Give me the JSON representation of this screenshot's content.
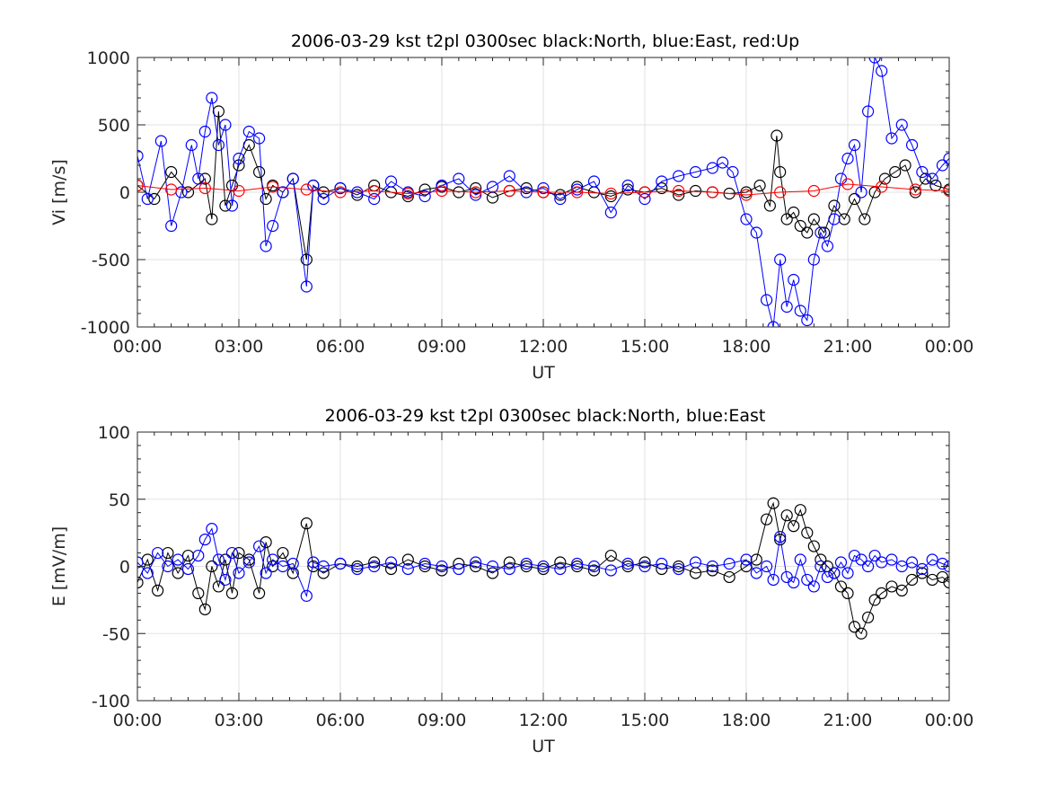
{
  "chart_data": [
    {
      "type": "line",
      "title": "2006-03-29 kst t2pl 0300sec black:North, blue:East, red:Up",
      "xlabel": "UT",
      "ylabel": "Vi [m/s]",
      "xlim": [
        0,
        24
      ],
      "ylim": [
        -1000,
        1000
      ],
      "grid": true,
      "x_tick_labels": [
        "00:00",
        "03:00",
        "06:00",
        "09:00",
        "12:00",
        "15:00",
        "18:00",
        "21:00",
        "00:00"
      ],
      "y_tick_labels": [
        "1000",
        "500",
        "0",
        "-500",
        "-1000"
      ],
      "marker": "open circle",
      "series": [
        {
          "name": "North",
          "color": "#000000",
          "x": [
            0.0,
            0.5,
            1.0,
            1.5,
            2.0,
            2.2,
            2.4,
            2.6,
            2.8,
            3.0,
            3.3,
            3.6,
            3.8,
            4.0,
            4.3,
            4.6,
            5.0,
            5.2,
            5.5,
            6.0,
            6.5,
            7.0,
            7.5,
            8.0,
            8.5,
            9.0,
            9.5,
            10.0,
            10.5,
            11.0,
            11.5,
            12.0,
            12.5,
            13.0,
            13.5,
            14.0,
            14.5,
            15.0,
            15.5,
            16.0,
            16.5,
            17.0,
            17.5,
            18.0,
            18.4,
            18.7,
            18.9,
            19.0,
            19.2,
            19.4,
            19.6,
            19.8,
            20.0,
            20.3,
            20.6,
            20.9,
            21.2,
            21.5,
            21.8,
            22.1,
            22.4,
            22.7,
            23.0,
            23.3,
            23.6,
            24.0
          ],
          "y": [
            50,
            -50,
            150,
            0,
            100,
            -200,
            600,
            -100,
            50,
            200,
            350,
            150,
            -50,
            50,
            0,
            100,
            -500,
            50,
            0,
            30,
            -20,
            50,
            0,
            -30,
            20,
            40,
            0,
            30,
            -40,
            10,
            30,
            0,
            -20,
            40,
            0,
            -30,
            20,
            0,
            30,
            -20,
            10,
            0,
            -10,
            0,
            50,
            -100,
            420,
            150,
            -200,
            -150,
            -250,
            -300,
            -200,
            -300,
            -100,
            -200,
            -50,
            -200,
            0,
            100,
            150,
            200,
            0,
            100,
            50,
            20
          ]
        },
        {
          "name": "East",
          "color": "#0000ff",
          "x": [
            0.0,
            0.3,
            0.7,
            1.0,
            1.3,
            1.6,
            1.8,
            2.0,
            2.2,
            2.4,
            2.6,
            2.8,
            3.0,
            3.3,
            3.6,
            3.8,
            4.0,
            4.3,
            4.6,
            5.0,
            5.2,
            5.5,
            6.0,
            6.5,
            7.0,
            7.5,
            8.0,
            8.5,
            9.0,
            9.5,
            10.0,
            10.5,
            11.0,
            11.5,
            12.0,
            12.5,
            13.0,
            13.5,
            14.0,
            14.5,
            15.0,
            15.5,
            16.0,
            16.5,
            17.0,
            17.3,
            17.6,
            18.0,
            18.3,
            18.6,
            18.8,
            19.0,
            19.2,
            19.4,
            19.6,
            19.8,
            20.0,
            20.2,
            20.4,
            20.6,
            20.8,
            21.0,
            21.2,
            21.4,
            21.6,
            21.8,
            22.0,
            22.3,
            22.6,
            22.9,
            23.2,
            23.5,
            23.8,
            24.0
          ],
          "y": [
            270,
            -50,
            380,
            -250,
            0,
            350,
            100,
            450,
            700,
            350,
            500,
            -100,
            250,
            450,
            400,
            -400,
            -250,
            0,
            100,
            -700,
            50,
            -50,
            30,
            0,
            -50,
            80,
            0,
            -30,
            50,
            100,
            -20,
            40,
            120,
            0,
            30,
            -50,
            20,
            80,
            -150,
            50,
            -50,
            80,
            120,
            150,
            180,
            220,
            150,
            -200,
            -300,
            -800,
            -1000,
            -500,
            -850,
            -650,
            -880,
            -950,
            -500,
            -300,
            -400,
            -200,
            100,
            250,
            350,
            0,
            600,
            1000,
            900,
            400,
            500,
            350,
            150,
            100,
            200,
            250
          ]
        },
        {
          "name": "Up",
          "color": "#ff0000",
          "x": [
            0.0,
            1.0,
            2.0,
            3.0,
            4.0,
            5.0,
            6.0,
            7.0,
            8.0,
            9.0,
            10.0,
            11.0,
            12.0,
            13.0,
            14.0,
            15.0,
            16.0,
            17.0,
            18.0,
            19.0,
            20.0,
            21.0,
            22.0,
            23.0,
            24.0
          ],
          "y": [
            50,
            20,
            30,
            10,
            40,
            20,
            0,
            10,
            -10,
            10,
            0,
            10,
            0,
            0,
            -10,
            0,
            10,
            0,
            -20,
            0,
            10,
            60,
            40,
            20,
            10
          ]
        }
      ]
    },
    {
      "type": "line",
      "title": "2006-03-29 kst t2pl 0300sec black:North, blue:East",
      "xlabel": "UT",
      "ylabel": "E [mV/m]",
      "xlim": [
        0,
        24
      ],
      "ylim": [
        -100,
        100
      ],
      "grid": true,
      "x_tick_labels": [
        "00:00",
        "03:00",
        "06:00",
        "09:00",
        "12:00",
        "15:00",
        "18:00",
        "21:00",
        "00:00"
      ],
      "y_tick_labels": [
        "100",
        "50",
        "0",
        "-50",
        "-100"
      ],
      "marker": "open circle",
      "series": [
        {
          "name": "North",
          "color": "#000000",
          "x": [
            0.0,
            0.3,
            0.6,
            0.9,
            1.2,
            1.5,
            1.8,
            2.0,
            2.2,
            2.4,
            2.6,
            2.8,
            3.0,
            3.3,
            3.6,
            3.8,
            4.0,
            4.3,
            4.6,
            5.0,
            5.2,
            5.5,
            6.0,
            6.5,
            7.0,
            7.5,
            8.0,
            8.5,
            9.0,
            9.5,
            10.0,
            10.5,
            11.0,
            11.5,
            12.0,
            12.5,
            13.0,
            13.5,
            14.0,
            14.5,
            15.0,
            15.5,
            16.0,
            16.5,
            17.0,
            17.5,
            18.0,
            18.3,
            18.6,
            18.8,
            19.0,
            19.2,
            19.4,
            19.6,
            19.8,
            20.0,
            20.2,
            20.4,
            20.6,
            20.8,
            21.0,
            21.2,
            21.4,
            21.6,
            21.8,
            22.0,
            22.3,
            22.6,
            22.9,
            23.2,
            23.5,
            23.8,
            24.0
          ],
          "y": [
            -12,
            5,
            -18,
            10,
            -5,
            8,
            -20,
            -32,
            0,
            -15,
            5,
            -20,
            10,
            5,
            -20,
            18,
            0,
            10,
            -5,
            32,
            0,
            -5,
            2,
            0,
            3,
            -2,
            5,
            0,
            -3,
            2,
            0,
            -5,
            3,
            0,
            -2,
            3,
            0,
            -3,
            8,
            0,
            3,
            -2,
            0,
            -5,
            -3,
            -8,
            0,
            5,
            35,
            47,
            20,
            38,
            30,
            42,
            25,
            15,
            5,
            0,
            -5,
            -15,
            -20,
            -45,
            -50,
            -38,
            -25,
            -20,
            -15,
            -18,
            -10,
            -5,
            -10,
            -8,
            -12
          ]
        },
        {
          "name": "East",
          "color": "#0000ff",
          "x": [
            0.0,
            0.3,
            0.6,
            0.9,
            1.2,
            1.5,
            1.8,
            2.0,
            2.2,
            2.4,
            2.6,
            2.8,
            3.0,
            3.3,
            3.6,
            3.8,
            4.0,
            4.3,
            4.6,
            5.0,
            5.2,
            5.5,
            6.0,
            6.5,
            7.0,
            7.5,
            8.0,
            8.5,
            9.0,
            9.5,
            10.0,
            10.5,
            11.0,
            11.5,
            12.0,
            12.5,
            13.0,
            13.5,
            14.0,
            14.5,
            15.0,
            15.5,
            16.0,
            16.5,
            17.0,
            17.5,
            18.0,
            18.3,
            18.6,
            18.8,
            19.0,
            19.2,
            19.4,
            19.6,
            19.8,
            20.0,
            20.2,
            20.4,
            20.6,
            20.8,
            21.0,
            21.2,
            21.4,
            21.6,
            21.8,
            22.0,
            22.3,
            22.6,
            22.9,
            23.2,
            23.5,
            23.8,
            24.0
          ],
          "y": [
            3,
            -5,
            10,
            0,
            5,
            -2,
            8,
            20,
            28,
            5,
            -10,
            10,
            -5,
            3,
            15,
            -5,
            5,
            0,
            2,
            -22,
            3,
            0,
            2,
            -2,
            0,
            3,
            -2,
            2,
            0,
            -2,
            3,
            0,
            -2,
            2,
            0,
            -2,
            2,
            0,
            -3,
            2,
            0,
            2,
            -2,
            3,
            0,
            2,
            5,
            -5,
            0,
            -10,
            22,
            -8,
            -12,
            5,
            -10,
            -15,
            0,
            -8,
            -5,
            3,
            -5,
            8,
            5,
            0,
            8,
            3,
            5,
            0,
            3,
            -2,
            5,
            2,
            0
          ]
        }
      ]
    }
  ]
}
